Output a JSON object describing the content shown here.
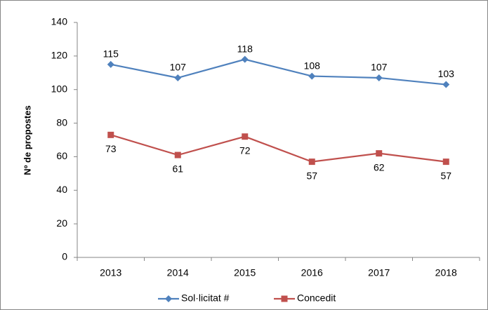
{
  "chart_data": {
    "type": "line",
    "y_label": "Nº de propostes",
    "categories": [
      "2013",
      "2014",
      "2015",
      "2016",
      "2017",
      "2018"
    ],
    "series": [
      {
        "name": "Sol·licitat #",
        "color": "#4f81bd",
        "marker": "diamond",
        "values": [
          115,
          107,
          118,
          108,
          107,
          103
        ]
      },
      {
        "name": "Concedit",
        "color": "#c0504d",
        "marker": "square",
        "values": [
          73,
          61,
          72,
          57,
          62,
          57
        ]
      }
    ],
    "ylim": [
      0,
      140
    ],
    "yticks": [
      0,
      20,
      40,
      60,
      80,
      100,
      120,
      140
    ],
    "grid": false,
    "legend": "bottom"
  }
}
